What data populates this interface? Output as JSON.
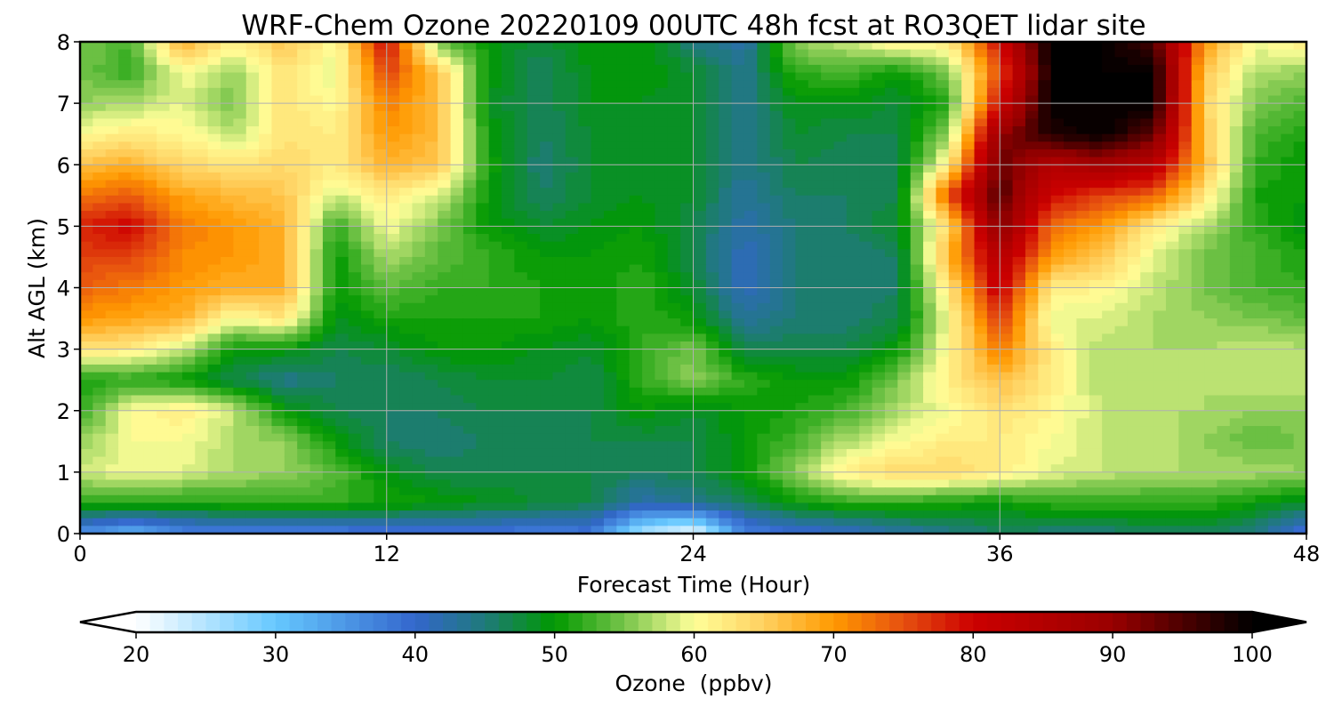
{
  "chart_data": {
    "type": "heatmap",
    "subtype": "filled-contour",
    "title": "WRF-Chem Ozone  20220109 00UTC 48h fcst at RO3QET lidar site",
    "xlabel": "Forecast Time (Hour)",
    "ylabel": "Alt AGL (km)",
    "xlim": [
      0,
      48
    ],
    "ylim": [
      0,
      8
    ],
    "xticks": [
      0,
      12,
      24,
      36,
      48
    ],
    "yticks": [
      0,
      1,
      2,
      3,
      4,
      5,
      6,
      7,
      8
    ],
    "grid": true,
    "x": [
      0,
      2,
      4,
      6,
      8,
      10,
      12,
      14,
      16,
      18,
      20,
      22,
      24,
      26,
      28,
      30,
      32,
      34,
      36,
      38,
      40,
      42,
      44,
      46,
      48
    ],
    "y_rows_top_to_bottom": [
      8,
      7.5,
      7,
      6.5,
      6,
      5.5,
      5,
      4.5,
      4,
      3.5,
      3,
      2.5,
      2,
      1.5,
      1,
      0.5,
      0
    ],
    "z": [
      [
        55,
        53,
        68,
        62,
        66,
        60,
        80,
        55,
        50,
        47,
        50,
        50,
        45,
        42,
        56,
        58,
        62,
        62,
        80,
        100,
        100,
        95,
        70,
        60,
        62
      ],
      [
        55,
        52,
        60,
        56,
        63,
        59,
        76,
        66,
        50,
        46,
        49,
        50,
        48,
        44,
        52,
        53,
        50,
        55,
        75,
        100,
        100,
        100,
        66,
        57,
        56
      ],
      [
        56,
        57,
        59,
        55,
        63,
        60,
        72,
        67,
        49,
        46,
        49,
        49,
        48,
        44,
        49,
        49,
        48,
        52,
        80,
        100,
        100,
        100,
        65,
        55,
        53
      ],
      [
        60,
        62,
        61,
        57,
        63,
        62,
        70,
        67,
        50,
        46,
        48,
        49,
        48,
        44,
        48,
        47,
        47,
        56,
        90,
        98,
        100,
        94,
        66,
        53,
        51
      ],
      [
        66,
        68,
        64,
        63,
        64,
        62,
        68,
        66,
        51,
        45,
        48,
        48,
        48,
        44,
        47,
        46,
        47,
        62,
        94,
        85,
        88,
        84,
        67,
        52,
        50
      ],
      [
        72,
        74,
        69,
        67,
        66,
        58,
        62,
        59,
        50,
        46,
        48,
        49,
        48,
        43,
        46,
        46,
        47,
        75,
        95,
        80,
        76,
        74,
        63,
        51,
        50
      ],
      [
        78,
        80,
        72,
        70,
        68,
        52,
        60,
        55,
        50,
        48,
        49,
        50,
        47,
        42,
        45,
        46,
        48,
        64,
        92,
        73,
        70,
        62,
        57,
        52,
        49
      ],
      [
        76,
        76,
        71,
        70,
        68,
        50,
        57,
        54,
        52,
        50,
        50,
        51,
        47,
        41,
        45,
        45,
        46,
        68,
        85,
        70,
        66,
        59,
        55,
        53,
        51
      ],
      [
        74,
        72,
        70,
        68,
        68,
        50,
        54,
        52,
        52,
        51,
        50,
        52,
        48,
        41,
        45,
        45,
        46,
        63,
        82,
        62,
        61,
        58,
        55,
        53,
        52
      ],
      [
        70,
        69,
        68,
        60,
        63,
        49,
        51,
        51,
        51,
        51,
        50,
        52,
        50,
        43,
        45,
        45,
        47,
        60,
        77,
        59,
        59,
        57,
        56,
        55,
        54
      ],
      [
        63,
        62,
        58,
        50,
        50,
        47,
        48,
        50,
        50,
        49,
        48,
        52,
        55,
        47,
        47,
        47,
        50,
        61,
        72,
        62,
        57,
        57,
        57,
        58,
        57
      ],
      [
        51,
        52,
        50,
        47,
        44,
        46,
        46,
        47,
        48,
        48,
        47,
        52,
        56,
        52,
        50,
        50,
        55,
        62,
        67,
        62,
        57,
        57,
        57,
        58,
        58
      ],
      [
        52,
        60,
        62,
        58,
        50,
        47,
        46,
        46,
        47,
        47,
        47,
        50,
        48,
        50,
        51,
        53,
        57,
        60,
        63,
        61,
        58,
        57,
        57,
        56,
        56
      ],
      [
        56,
        60,
        60,
        57,
        56,
        50,
        46,
        45,
        46,
        46,
        47,
        47,
        47,
        50,
        53,
        57,
        60,
        62,
        62,
        60,
        58,
        58,
        56,
        54,
        55
      ],
      [
        58,
        60,
        59,
        57,
        56,
        54,
        49,
        47,
        47,
        47,
        47,
        46,
        47,
        50,
        56,
        62,
        64,
        64,
        62,
        59,
        58,
        57,
        57,
        57,
        56
      ],
      [
        52,
        52,
        51,
        52,
        52,
        52,
        51,
        50,
        49,
        48,
        47,
        42,
        44,
        46,
        50,
        52,
        52,
        51,
        50,
        52,
        52,
        52,
        52,
        50,
        48
      ],
      [
        35,
        32,
        36,
        37,
        37,
        37,
        38,
        38,
        38,
        37,
        38,
        25,
        20,
        37,
        39,
        40,
        42,
        44,
        46,
        45,
        45,
        46,
        46,
        44,
        38
      ]
    ],
    "colorbar": {
      "label": "Ozone  (ppbv)",
      "min": 20,
      "max": 100,
      "step": 1,
      "extend": "both",
      "ticks": [
        20,
        30,
        40,
        50,
        60,
        70,
        80,
        90,
        100
      ],
      "colormap_anchors": [
        [
          20,
          "#ffffff"
        ],
        [
          30,
          "#66c8ff"
        ],
        [
          40,
          "#3366cc"
        ],
        [
          45,
          "#1f7a7a"
        ],
        [
          50,
          "#009900"
        ],
        [
          55,
          "#77c44a"
        ],
        [
          60,
          "#ffff99"
        ],
        [
          65,
          "#ffd060"
        ],
        [
          70,
          "#ff9900"
        ],
        [
          75,
          "#e65010"
        ],
        [
          80,
          "#cc0000"
        ],
        [
          90,
          "#990000"
        ],
        [
          100,
          "#000000"
        ]
      ]
    }
  }
}
